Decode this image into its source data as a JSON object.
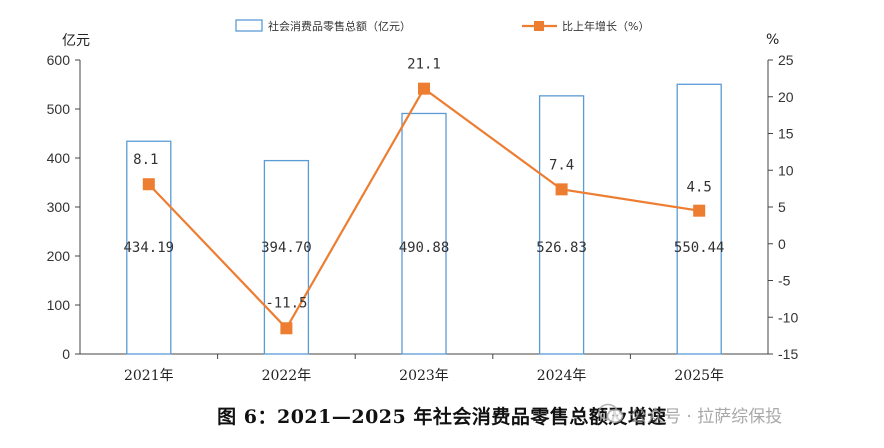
{
  "chart_data": {
    "type": "bar",
    "categories": [
      "2021年",
      "2022年",
      "2023年",
      "2024年",
      "2025年"
    ],
    "series": [
      {
        "name": "社会消费品零售总额（亿元）",
        "kind": "bar",
        "axis": "left",
        "values": [
          434.19,
          394.7,
          490.88,
          526.83,
          550.44
        ],
        "labels": [
          "434.19",
          "394.70",
          "490.88",
          "526.83",
          "550.44"
        ],
        "color": "#5b9bd5"
      },
      {
        "name": "比上年增长（%）",
        "kind": "line",
        "axis": "right",
        "values": [
          8.1,
          -11.5,
          21.1,
          7.4,
          4.5
        ],
        "labels": [
          "8.1",
          "-11.5",
          "21.1",
          "7.4",
          "4.5"
        ],
        "color": "#ed7d31"
      }
    ],
    "y_left": {
      "unit": "亿元",
      "ylim": [
        0,
        600
      ],
      "ticks": [
        "0",
        "100",
        "200",
        "300",
        "400",
        "500",
        "600"
      ]
    },
    "y_right": {
      "unit": "%",
      "ylim": [
        -15,
        25
      ],
      "ticks": [
        "-15",
        "-10",
        "-5",
        "0",
        "5",
        "10",
        "15",
        "20",
        "25"
      ]
    },
    "legend_position": "top",
    "grid": false
  },
  "caption": "图 6：2021—2025 年社会消费品零售总额及增速",
  "watermark": "公众号 · 拉萨综保投"
}
